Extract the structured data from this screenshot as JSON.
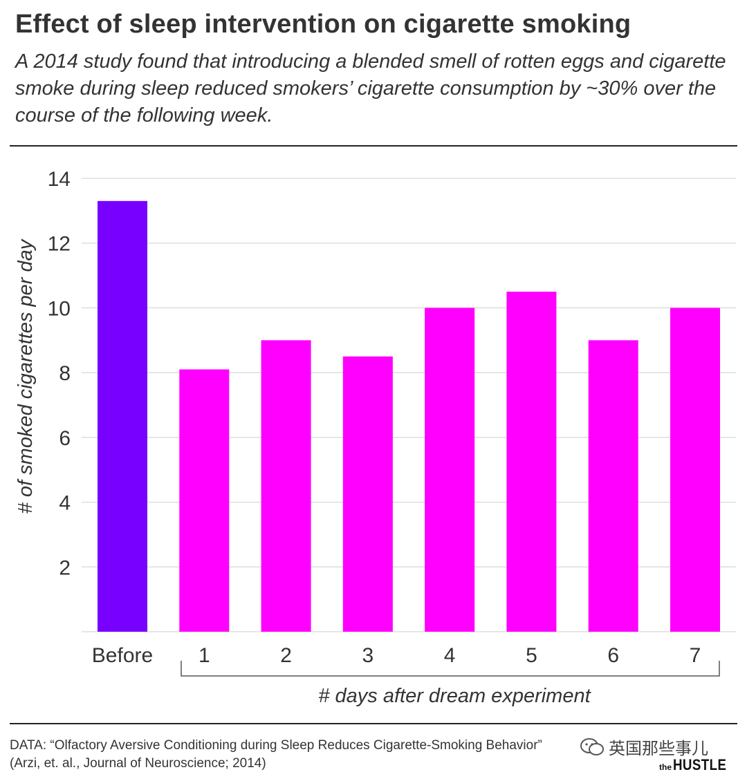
{
  "header": {
    "title": "Effect of sleep intervention on cigarette smoking",
    "subtitle": "A 2014 study found that introducing a blended smell of rotten eggs and cigarette smoke during sleep reduced smokers’ cigarette consumption by ~30% over the course of the following week."
  },
  "chart_data": {
    "type": "bar",
    "categories": [
      "Before",
      "1",
      "2",
      "3",
      "4",
      "5",
      "6",
      "7"
    ],
    "values": [
      13.3,
      8.1,
      9.0,
      8.5,
      10.0,
      10.5,
      9.0,
      10.0
    ],
    "bar_colors": [
      "#7700ff",
      "#ff00ff",
      "#ff00ff",
      "#ff00ff",
      "#ff00ff",
      "#ff00ff",
      "#ff00ff",
      "#ff00ff"
    ],
    "ylabel": "# of smoked cigarettes per day",
    "xlabel": "# days after dream experiment",
    "ylim": [
      0,
      14
    ],
    "yticks": [
      2,
      4,
      6,
      8,
      10,
      12,
      14
    ],
    "grid": true,
    "grid_color": "#dddddd"
  },
  "footer": {
    "source_line1": "DATA: “Olfactory Aversive Conditioning during Sleep Reduces Cigarette-Smoking Behavior”",
    "source_line2": "(Arzi, et. al., Journal of Neuroscience; 2014)"
  },
  "watermark": {
    "icon": "wechat-icon",
    "text": "英国那些事儿"
  },
  "brand": {
    "prefix": "the",
    "name": "HUSTLE"
  }
}
